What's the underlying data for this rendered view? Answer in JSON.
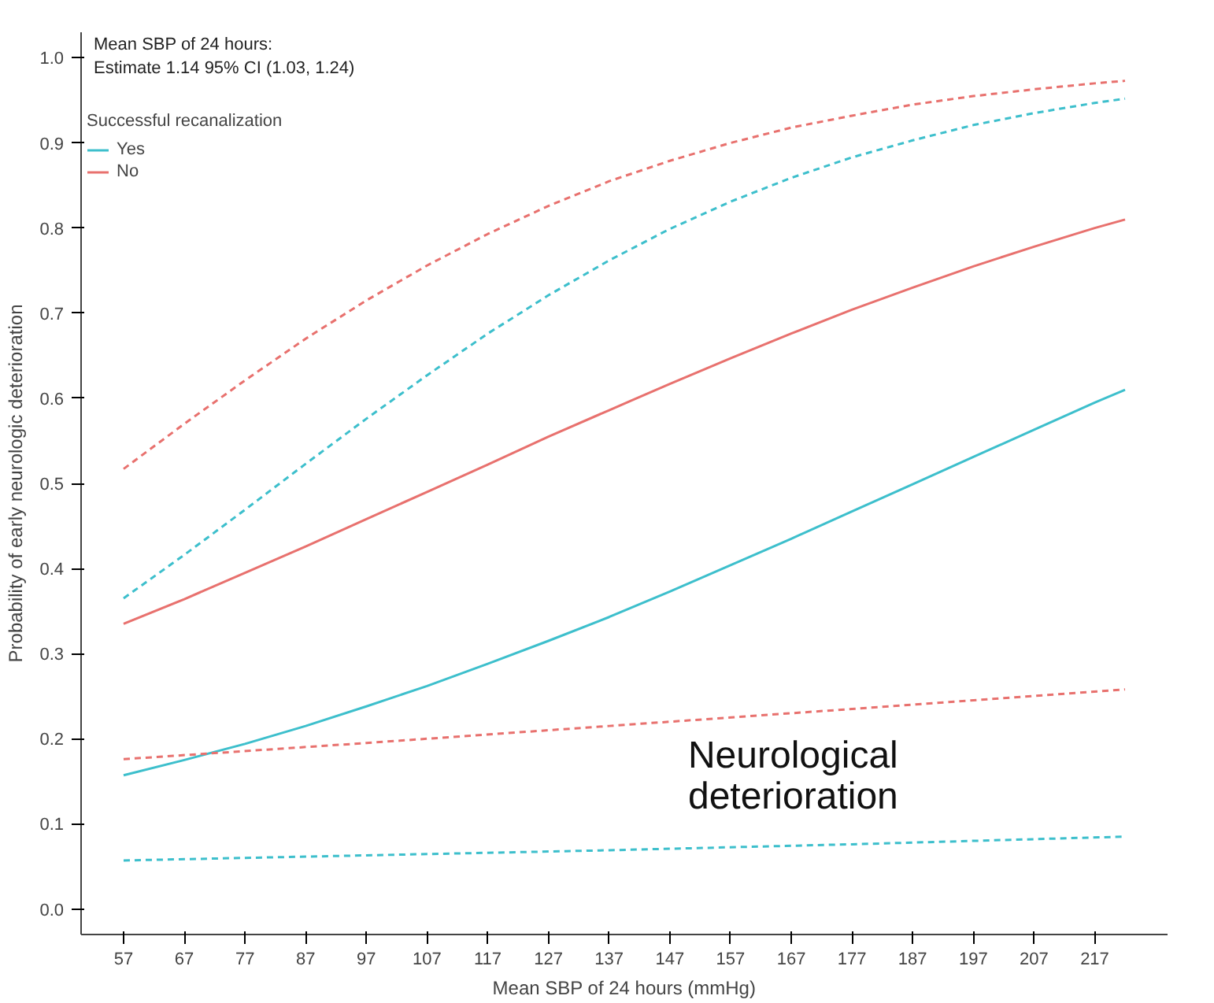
{
  "chart_data": {
    "type": "line",
    "xlabel": "Mean SBP of 24 hours (mmHg)",
    "ylabel": "Probability of early neurologic deterioration",
    "legend_title": "Successful recanalization",
    "legend": "top left",
    "grid": false,
    "marker": "none",
    "annotations": [
      "Mean SBP of 24 hours:",
      "Estimate 1.14 95% CI (1.03, 1.24)",
      "Neurological deterioration"
    ],
    "xlim": [
      50,
      229
    ],
    "ylim": [
      -0.03,
      1.03
    ],
    "xticks": [
      57,
      67,
      77,
      87,
      97,
      107,
      117,
      127,
      137,
      147,
      157,
      167,
      177,
      187,
      197,
      207,
      217
    ],
    "yticks": [
      {
        "value": 0,
        "label": "0.0"
      },
      {
        "value": 0.1,
        "label": "0.1"
      },
      {
        "value": 0.2,
        "label": "0.2"
      },
      {
        "value": 0.3,
        "label": "0.3"
      },
      {
        "value": 0.4,
        "label": "0.4"
      },
      {
        "value": 0.5,
        "label": "0.5"
      },
      {
        "value": 0.6,
        "label": "0.6"
      },
      {
        "value": 0.7,
        "label": "0.7"
      },
      {
        "value": 0.8,
        "label": "0.8"
      },
      {
        "value": 0.9,
        "label": "0.9"
      },
      {
        "value": 1,
        "label": "1.0"
      }
    ],
    "x": [
      57,
      67,
      77,
      87,
      97,
      107,
      117,
      127,
      137,
      147,
      157,
      167,
      177,
      187,
      197,
      207,
      217,
      222
    ],
    "series": [
      {
        "name": "Yes",
        "color": "#3dbfcc",
        "line_style": "solid",
        "values": [
          0.157,
          0.175,
          0.194,
          0.215,
          0.238,
          0.262,
          0.288,
          0.315,
          0.343,
          0.373,
          0.404,
          0.435,
          0.467,
          0.499,
          0.531,
          0.563,
          0.595,
          0.61
        ]
      },
      {
        "name": "No",
        "color": "#e8716e",
        "line_style": "solid",
        "values": [
          0.335,
          0.364,
          0.395,
          0.426,
          0.458,
          0.49,
          0.522,
          0.555,
          0.586,
          0.617,
          0.647,
          0.676,
          0.704,
          0.73,
          0.755,
          0.778,
          0.8,
          0.81
        ]
      },
      {
        "color": "#3dbfcc",
        "line_style": "dashed",
        "values": [
          0.365,
          0.416,
          0.469,
          0.523,
          0.576,
          0.627,
          0.676,
          0.721,
          0.762,
          0.799,
          0.831,
          0.859,
          0.883,
          0.903,
          0.921,
          0.935,
          0.947,
          0.952
        ]
      },
      {
        "color": "#3dbfcc",
        "line_style": "dashed",
        "x": [
          57,
          97,
          137,
          177,
          222
        ],
        "values": [
          0.057,
          0.063,
          0.069,
          0.076,
          0.085
        ]
      },
      {
        "color": "#e8716e",
        "line_style": "dashed",
        "values": [
          0.517,
          0.57,
          0.621,
          0.67,
          0.715,
          0.756,
          0.793,
          0.826,
          0.855,
          0.879,
          0.9,
          0.918,
          0.932,
          0.945,
          0.955,
          0.963,
          0.97,
          0.973
        ]
      },
      {
        "color": "#e8716e",
        "line_style": "dashed",
        "x": [
          57,
          97,
          137,
          177,
          222
        ],
        "values": [
          0.176,
          0.195,
          0.215,
          0.235,
          0.258
        ]
      }
    ]
  }
}
